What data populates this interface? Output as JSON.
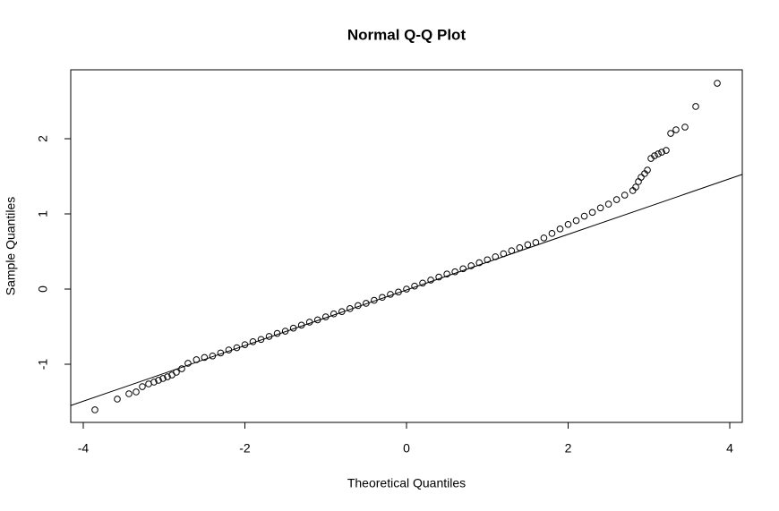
{
  "chart_data": {
    "type": "scatter",
    "title": "Normal Q-Q Plot",
    "x_label": "Theoretical Quantiles",
    "y_label": "Sample Quantiles",
    "x": [
      -3.856,
      -3.579,
      -3.435,
      -3.346,
      -3.269,
      -3.191,
      -3.125,
      -3.069,
      -3.014,
      -2.958,
      -2.903,
      -2.848,
      -2.781,
      -2.704,
      -2.6,
      -2.5,
      -2.4,
      -2.3,
      -2.2,
      -2.1,
      -2.0,
      -1.9,
      -1.8,
      -1.7,
      -1.6,
      -1.5,
      -1.4,
      -1.3,
      -1.2,
      -1.1,
      -1.0,
      -0.9,
      -0.8,
      -0.7,
      -0.6,
      -0.5,
      -0.4,
      -0.3,
      -0.2,
      -0.1,
      0,
      0.1,
      0.2,
      0.3,
      0.4,
      0.5,
      0.6,
      0.7,
      0.8,
      0.9,
      1.0,
      1.1,
      1.2,
      1.3,
      1.4,
      1.5,
      1.6,
      1.7,
      1.8,
      1.9,
      2.0,
      2.1,
      2.2,
      2.3,
      2.4,
      2.5,
      2.6,
      2.7,
      2.8,
      2.837,
      2.87,
      2.903,
      2.947,
      2.981,
      3.025,
      3.069,
      3.114,
      3.158,
      3.213,
      3.269,
      3.335,
      3.446,
      3.579,
      3.845
    ],
    "values": [
      -1.607,
      -1.464,
      -1.393,
      -1.369,
      -1.298,
      -1.262,
      -1.238,
      -1.214,
      -1.19,
      -1.167,
      -1.143,
      -1.107,
      -1.06,
      -0.988,
      -0.94,
      -0.91,
      -0.89,
      -0.85,
      -0.81,
      -0.78,
      -0.74,
      -0.7,
      -0.67,
      -0.63,
      -0.59,
      -0.56,
      -0.52,
      -0.48,
      -0.44,
      -0.41,
      -0.37,
      -0.33,
      -0.3,
      -0.26,
      -0.22,
      -0.19,
      -0.15,
      -0.11,
      -0.07,
      -0.04,
      0,
      0.04,
      0.08,
      0.12,
      0.16,
      0.2,
      0.23,
      0.27,
      0.31,
      0.35,
      0.39,
      0.43,
      0.47,
      0.51,
      0.55,
      0.59,
      0.62,
      0.68,
      0.74,
      0.8,
      0.86,
      0.91,
      0.97,
      1.02,
      1.08,
      1.13,
      1.19,
      1.25,
      1.31,
      1.357,
      1.429,
      1.488,
      1.536,
      1.583,
      1.738,
      1.774,
      1.798,
      1.821,
      1.845,
      2.071,
      2.119,
      2.155,
      2.429,
      2.738
    ],
    "reference_line": {
      "intercept": -0.012,
      "slope": 0.37
    },
    "xlim": [
      -4.155,
      4.155
    ],
    "ylim": [
      -1.774,
      2.917
    ],
    "xticks": [
      -4,
      -2,
      0,
      2,
      4
    ],
    "yticks": [
      -1,
      0,
      1,
      2
    ],
    "color": "#000000"
  }
}
